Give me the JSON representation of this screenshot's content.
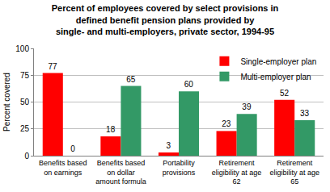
{
  "chart_data": {
    "type": "bar",
    "title": "Percent of employees covered by select provisions in\ndefined benefit pension plans provided by\nsingle- and multi-employers, private sector, 1994-95",
    "y_label": "Percent covered",
    "categories": [
      "Benefits based\non earnings",
      "Benefits based\non dollar\namount formula",
      "Portability\nprovisions",
      "Retirement\neligibility at age\n62",
      "Retirement\neligibility at age\n65"
    ],
    "series": [
      {
        "name": "Single-employer plan",
        "color": "#ff0000",
        "values": [
          77,
          18,
          3,
          23,
          52
        ]
      },
      {
        "name": "Multi-employer plan",
        "color": "#339966",
        "values": [
          0,
          65,
          60,
          39,
          33
        ]
      }
    ],
    "ylim": [
      0,
      100
    ],
    "yticks": [
      0,
      25,
      50,
      75,
      100
    ],
    "grid": true,
    "legend": "top right",
    "data_labels": true
  }
}
